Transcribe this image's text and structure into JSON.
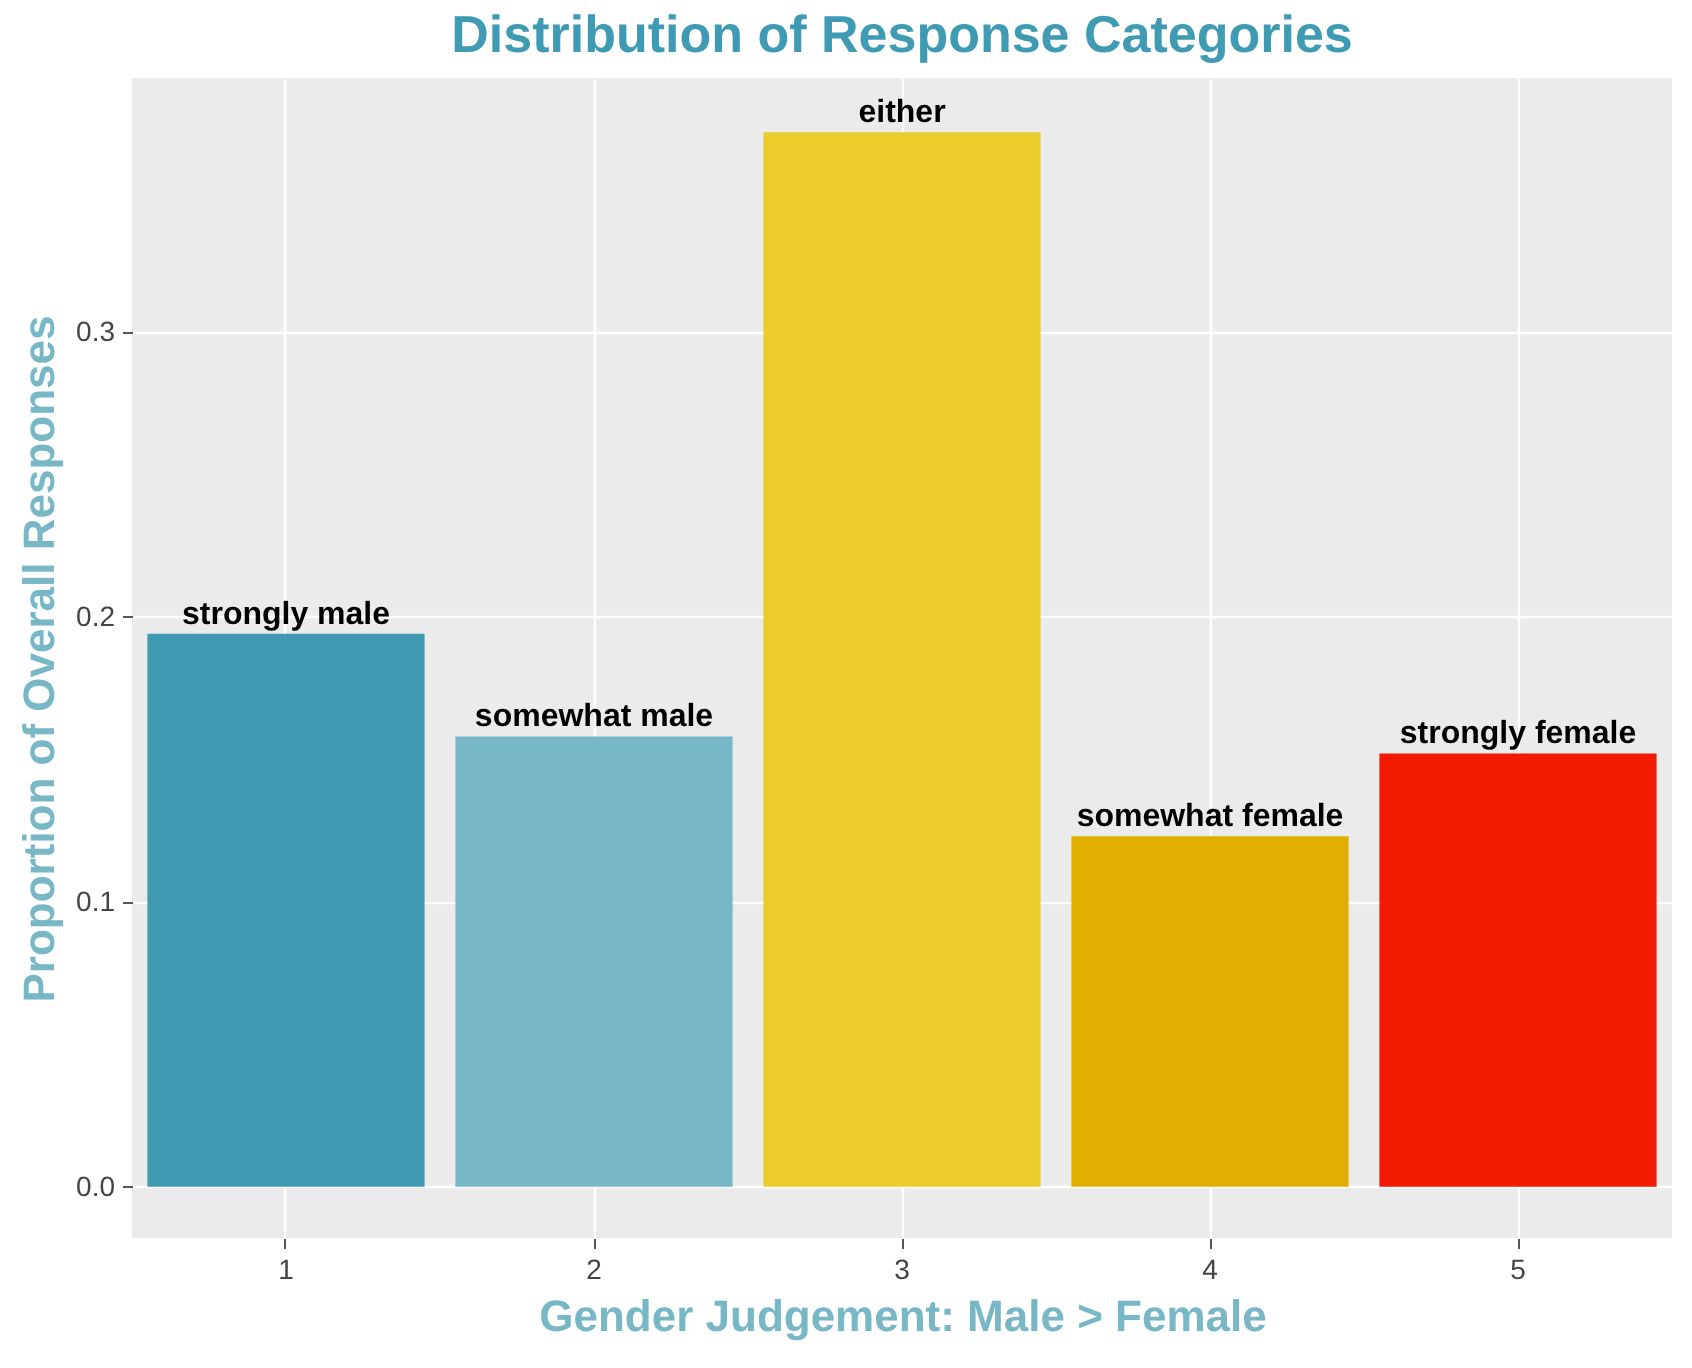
{
  "chart_data": {
    "type": "bar",
    "title": "Distribution of Response Categories",
    "xlabel": "Gender Judgement: Male > Female",
    "ylabel": "Proportion of Overall Responses",
    "categories": [
      "1",
      "2",
      "3",
      "4",
      "5"
    ],
    "values": [
      0.194,
      0.158,
      0.37,
      0.123,
      0.152
    ],
    "colors": [
      "#3e9bb3",
      "#78b7c5",
      "#ebcc2a",
      "#e1af00",
      "#f21a00"
    ],
    "ylim": [
      -0.018,
      0.389
    ],
    "yticks": [
      {
        "value": 0,
        "label": "0.0"
      },
      {
        "value": 0.1,
        "label": "0.1"
      },
      {
        "value": 0.2,
        "label": "0.2"
      },
      {
        "value": 0.3,
        "label": "0.3"
      }
    ],
    "grid": true,
    "annotations": [
      {
        "text": "strongly male",
        "x": "1",
        "y": 0.194
      },
      {
        "text": "somewhat male",
        "x": "2",
        "y": 0.158
      },
      {
        "text": "either",
        "x": "3",
        "y": 0.37
      },
      {
        "text": "somewhat female",
        "x": "4",
        "y": 0.123
      },
      {
        "text": "strongly female",
        "x": "5",
        "y": 0.152
      }
    ]
  }
}
